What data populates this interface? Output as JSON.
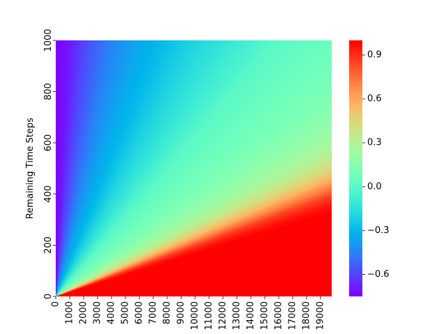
{
  "chart_data": {
    "type": "heatmap",
    "title": "",
    "xlabel": "",
    "ylabel": "Remaining Time Steps",
    "x_range": [
      0,
      19800
    ],
    "y_range": [
      0,
      1000
    ],
    "x_ticks": [
      0,
      1000,
      2000,
      3000,
      4000,
      5000,
      6000,
      7000,
      8000,
      9000,
      10000,
      11000,
      12000,
      13000,
      14000,
      15000,
      16000,
      17000,
      18000,
      19000
    ],
    "x_tick_labels": [
      "0",
      "1000",
      "2000",
      "3000",
      "4000",
      "5000",
      "6000",
      "7000",
      "8000",
      "9000",
      "10000",
      "11000",
      "12000",
      "13000",
      "14000",
      "15000",
      "16000",
      "17000",
      "18000",
      "19000"
    ],
    "y_ticks": [
      0,
      200,
      400,
      600,
      800,
      1000
    ],
    "y_tick_labels": [
      "0",
      "200",
      "400",
      "600",
      "800",
      "1000"
    ],
    "colormap": "rainbow",
    "value_range": [
      -0.75,
      1.0
    ],
    "colorbar_ticks": [
      -0.6,
      -0.3,
      0.0,
      0.3,
      0.6,
      0.9
    ],
    "colorbar_tick_labels": [
      "−0.6",
      "−0.3",
      "0.0",
      "0.3",
      "0.6",
      "0.9"
    ],
    "value_profile_by_ratio": {
      "description": "cell value as a function of x / remaining time steps",
      "ratio": [
        0,
        1,
        2,
        4,
        6,
        8,
        10,
        13,
        16,
        20,
        25,
        30,
        35,
        40,
        45,
        50,
        55,
        60,
        70,
        80,
        100
      ],
      "value": [
        -0.75,
        -0.7,
        -0.6,
        -0.45,
        -0.35,
        -0.28,
        -0.2,
        -0.1,
        0.0,
        0.06,
        0.12,
        0.2,
        0.3,
        0.45,
        0.65,
        0.85,
        0.95,
        1.0,
        1.0,
        1.0,
        1.0
      ]
    }
  }
}
